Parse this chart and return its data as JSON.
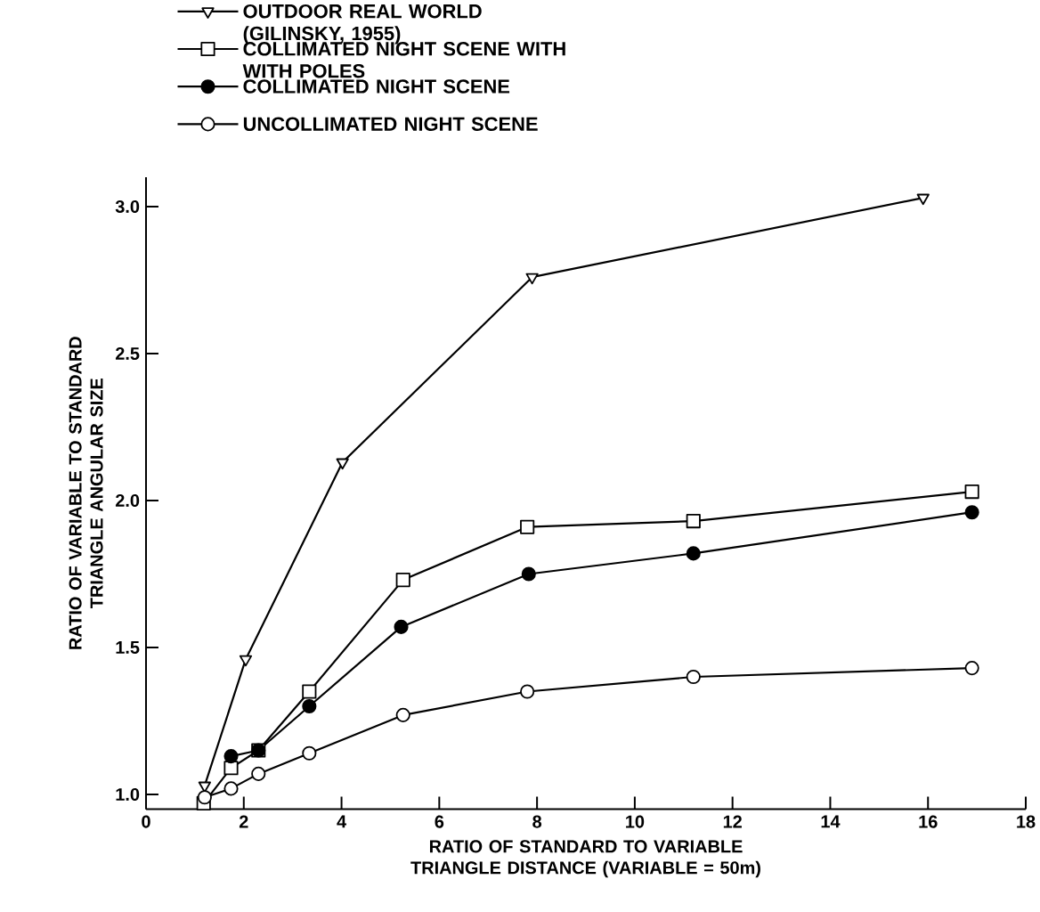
{
  "chart_data": {
    "type": "line",
    "xlabel": "RATIO OF STANDARD TO VARIABLE TRIANGLE DISTANCE (VARIABLE = 50m)",
    "ylabel": "RATIO OF VARIABLE TO STANDARD TRIANGLE ANGULAR SIZE",
    "xlim": [
      0,
      18
    ],
    "ylim": [
      0.95,
      3.1
    ],
    "xticks": [
      0,
      2,
      4,
      6,
      8,
      10,
      12,
      14,
      16,
      18
    ],
    "yticks": [
      {
        "value": 1,
        "label": "1.0"
      },
      {
        "value": 1.5,
        "label": "1.5"
      },
      {
        "value": 2,
        "label": "2.0"
      },
      {
        "value": 2.5,
        "label": "2.5"
      },
      {
        "value": 3,
        "label": "3.0"
      }
    ],
    "legend": "top",
    "grid": false,
    "line_style": "solid",
    "series": [
      {
        "name": "OUTDOOR REAL WORLD (GILINSKY, 1955)",
        "color": "#000000",
        "marker": "triangle",
        "x": [
          1.2,
          2.04,
          4.02,
          7.9,
          15.9
        ],
        "values": [
          1.03,
          1.46,
          2.13,
          2.76,
          3.03
        ]
      },
      {
        "name": "COLLIMATED NIGHT SCENE WITH WITH POLES",
        "color": "#000000",
        "marker": "square",
        "x": [
          1.18,
          1.74,
          2.3,
          3.34,
          5.26,
          7.8,
          11.2,
          16.9
        ],
        "values": [
          0.97,
          1.09,
          1.15,
          1.35,
          1.73,
          1.91,
          1.93,
          2.03
        ]
      },
      {
        "name": "COLLIMATED NIGHT SCENE",
        "color": "#000000",
        "marker": "circle",
        "x": [
          1.74,
          2.3,
          3.34,
          5.22,
          7.83,
          11.2,
          16.9
        ],
        "values": [
          1.13,
          1.15,
          1.3,
          1.57,
          1.75,
          1.82,
          1.96
        ]
      },
      {
        "name": "UNCOLLIMATED NIGHT SCENE",
        "color": "#000000",
        "marker": "circle",
        "x": [
          1.2,
          1.74,
          2.3,
          3.34,
          5.26,
          7.8,
          11.2,
          16.9
        ],
        "values": [
          0.99,
          1.02,
          1.07,
          1.14,
          1.27,
          1.35,
          1.4,
          1.43
        ]
      }
    ]
  }
}
